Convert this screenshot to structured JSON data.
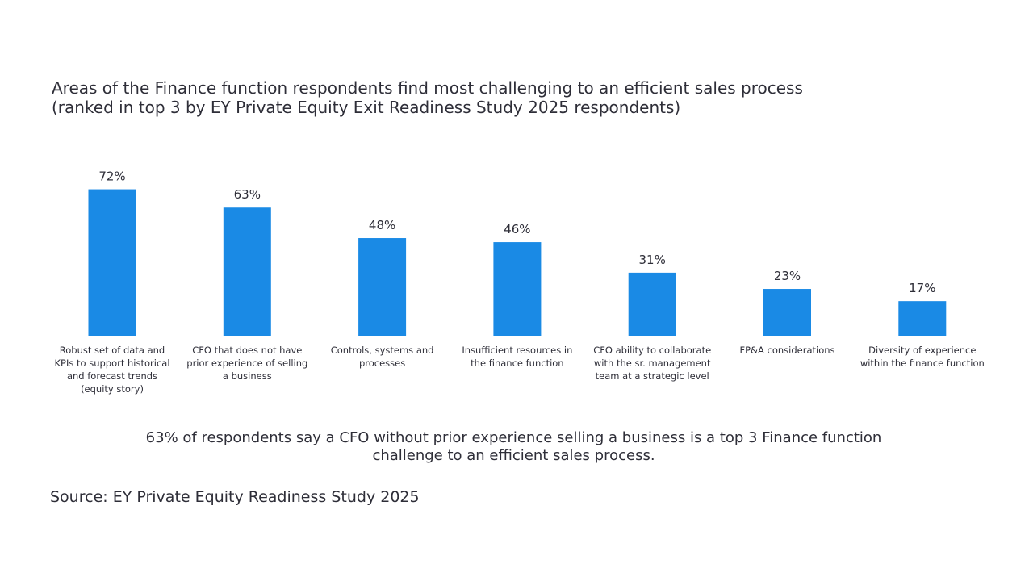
{
  "title_lines": [
    "Areas of the Finance function respondents find most challenging to an efficient sales process",
    "(ranked in top 3 by EY Private Equity Exit Readiness Study 2025 respondents)"
  ],
  "chart_data": {
    "type": "bar",
    "title": "Areas of the Finance function respondents find most challenging to an efficient sales process (ranked in top 3 by EY Private Equity Exit Readiness Study 2025 respondents)",
    "categories": [
      [
        "Robust set of data and",
        "KPIs to support historical",
        "and forecast trends",
        "(equity story)"
      ],
      [
        "CFO that does not have",
        "prior experience of selling",
        "a business"
      ],
      [
        "Controls, systems and",
        "processes"
      ],
      [
        "Insufficient resources in",
        "the finance function"
      ],
      [
        "CFO ability to collaborate",
        "with the sr. management",
        "team at a strategic level"
      ],
      [
        "FP&A considerations"
      ],
      [
        "Diversity of experience",
        "within the finance function"
      ]
    ],
    "values": [
      72,
      63,
      48,
      46,
      31,
      23,
      17
    ],
    "value_labels": [
      "72%",
      "63%",
      "48%",
      "46%",
      "31%",
      "23%",
      "17%"
    ],
    "unit": "%",
    "ylim": [
      0,
      100
    ],
    "bar_color": "#1a8ae5",
    "grid": false,
    "legend": "none"
  },
  "summary_lines": [
    "63% of respondents say a CFO without prior experience selling a business is a top 3 Finance function",
    "challenge to an efficient sales process."
  ],
  "source": "Source: EY Private Equity Readiness Study 2025",
  "colors": {
    "bar": "#1a8ae5",
    "text": "#2e2e38",
    "axis": "#d9d9d9"
  }
}
